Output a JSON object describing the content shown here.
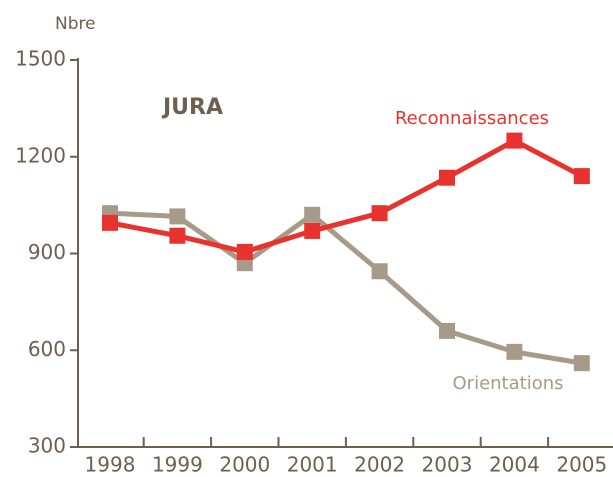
{
  "chart_data": {
    "type": "line",
    "title": "JURA",
    "y_label": "Nbre",
    "categories": [
      "1998",
      "1999",
      "2000",
      "2001",
      "2002",
      "2003",
      "2004",
      "2005"
    ],
    "series": [
      {
        "name": "Reconnaissances",
        "color": "#e8322e",
        "values": [
          995,
          955,
          905,
          970,
          1025,
          1135,
          1250,
          1140
        ]
      },
      {
        "name": "Orientations",
        "color": "#a89a88",
        "values": [
          1025,
          1015,
          870,
          1020,
          845,
          660,
          595,
          560
        ]
      }
    ],
    "ylim": [
      300,
      1500
    ],
    "yticks": [
      300,
      600,
      900,
      1200,
      1500
    ],
    "grid": false
  }
}
